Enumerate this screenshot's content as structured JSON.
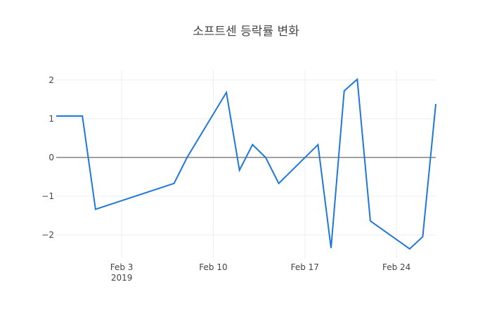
{
  "chart_data": {
    "type": "line",
    "title": "소프트센 등락률 변화",
    "xlabel": "",
    "ylabel": "",
    "x_ticks": [
      {
        "date": "2019-02-03",
        "label": "Feb 3",
        "sublabel": "2019"
      },
      {
        "date": "2019-02-10",
        "label": "Feb 10",
        "sublabel": ""
      },
      {
        "date": "2019-02-17",
        "label": "Feb 17",
        "sublabel": ""
      },
      {
        "date": "2019-02-24",
        "label": "Feb 24",
        "sublabel": ""
      }
    ],
    "y_ticks": [
      {
        "value": 2,
        "label": "2"
      },
      {
        "value": 1,
        "label": "1"
      },
      {
        "value": 0,
        "label": "0"
      },
      {
        "value": -1,
        "label": "−1"
      },
      {
        "value": -2,
        "label": "−2"
      }
    ],
    "xlim": [
      "2019-01-29",
      "2019-02-27"
    ],
    "ylim": [
      -2.6,
      2.25
    ],
    "grid": true,
    "zero_line": true,
    "line_color": "#1f77d9",
    "series": [
      {
        "x": [
          "2019-01-29",
          "2019-01-30",
          "2019-01-31",
          "2019-02-01",
          "2019-02-07",
          "2019-02-08",
          "2019-02-11",
          "2019-02-12",
          "2019-02-13",
          "2019-02-14",
          "2019-02-15",
          "2019-02-18",
          "2019-02-19",
          "2019-02-20",
          "2019-02-21",
          "2019-02-22",
          "2019-02-25",
          "2019-02-26",
          "2019-02-27"
        ],
        "values": [
          1.07,
          1.07,
          1.07,
          -1.34,
          -0.67,
          0.0,
          1.68,
          -0.33,
          0.33,
          0.0,
          -0.67,
          0.33,
          -2.34,
          1.72,
          2.02,
          -1.64,
          -2.36,
          -2.05,
          1.38
        ]
      }
    ]
  }
}
